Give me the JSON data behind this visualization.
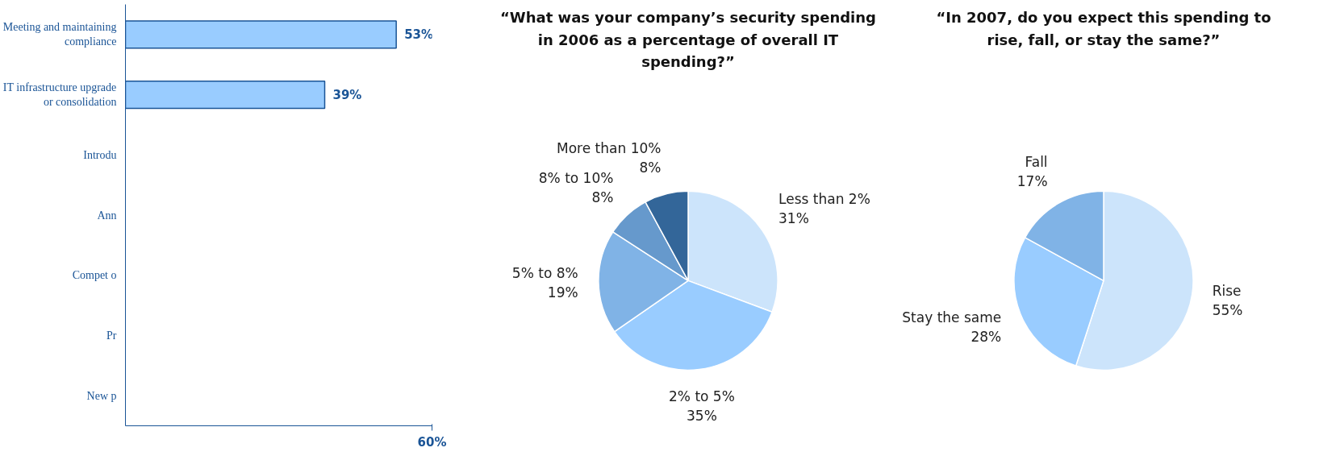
{
  "chart_data": [
    {
      "type": "bar",
      "orientation": "horizontal",
      "categories": [
        "Meeting and maintaining compliance",
        "IT infrastructure upgrade or consolidation",
        "Introdu",
        "Ann",
        "Compet o",
        "Pr",
        "New p"
      ],
      "values": [
        53,
        39,
        null,
        null,
        null,
        null,
        null
      ],
      "color": "#99ccff",
      "value_labels": [
        "53%",
        "39%",
        null,
        null,
        null,
        null,
        null
      ],
      "xlim": [
        0,
        60
      ],
      "xticks": [
        {
          "value": 60,
          "label": "60%"
        }
      ],
      "grid": false
    },
    {
      "type": "pie",
      "title": "“What was your company’s security spending in 2006 as a percentage of overall IT spending?”",
      "categories": [
        "Less than 2%",
        "2% to 5%",
        "5% to 8%",
        "8% to 10%",
        "More than 10%"
      ],
      "values": [
        31,
        35,
        19,
        8,
        8
      ],
      "colors": [
        "#cce4fb",
        "#99ccff",
        "#80b3e6",
        "#6699cc",
        "#336699"
      ],
      "value_labels": [
        "31%",
        "35%",
        "19%",
        "8%",
        "8%"
      ]
    },
    {
      "type": "pie",
      "title": "“In 2007, do you expect this spending to rise, fall, or stay the same?”",
      "categories": [
        "Rise",
        "Stay the same",
        "Fall"
      ],
      "values": [
        55,
        28,
        17
      ],
      "colors": [
        "#cce4fb",
        "#99ccff",
        "#80b3e6"
      ],
      "value_labels": [
        "55%",
        "28%",
        "17%"
      ]
    }
  ]
}
